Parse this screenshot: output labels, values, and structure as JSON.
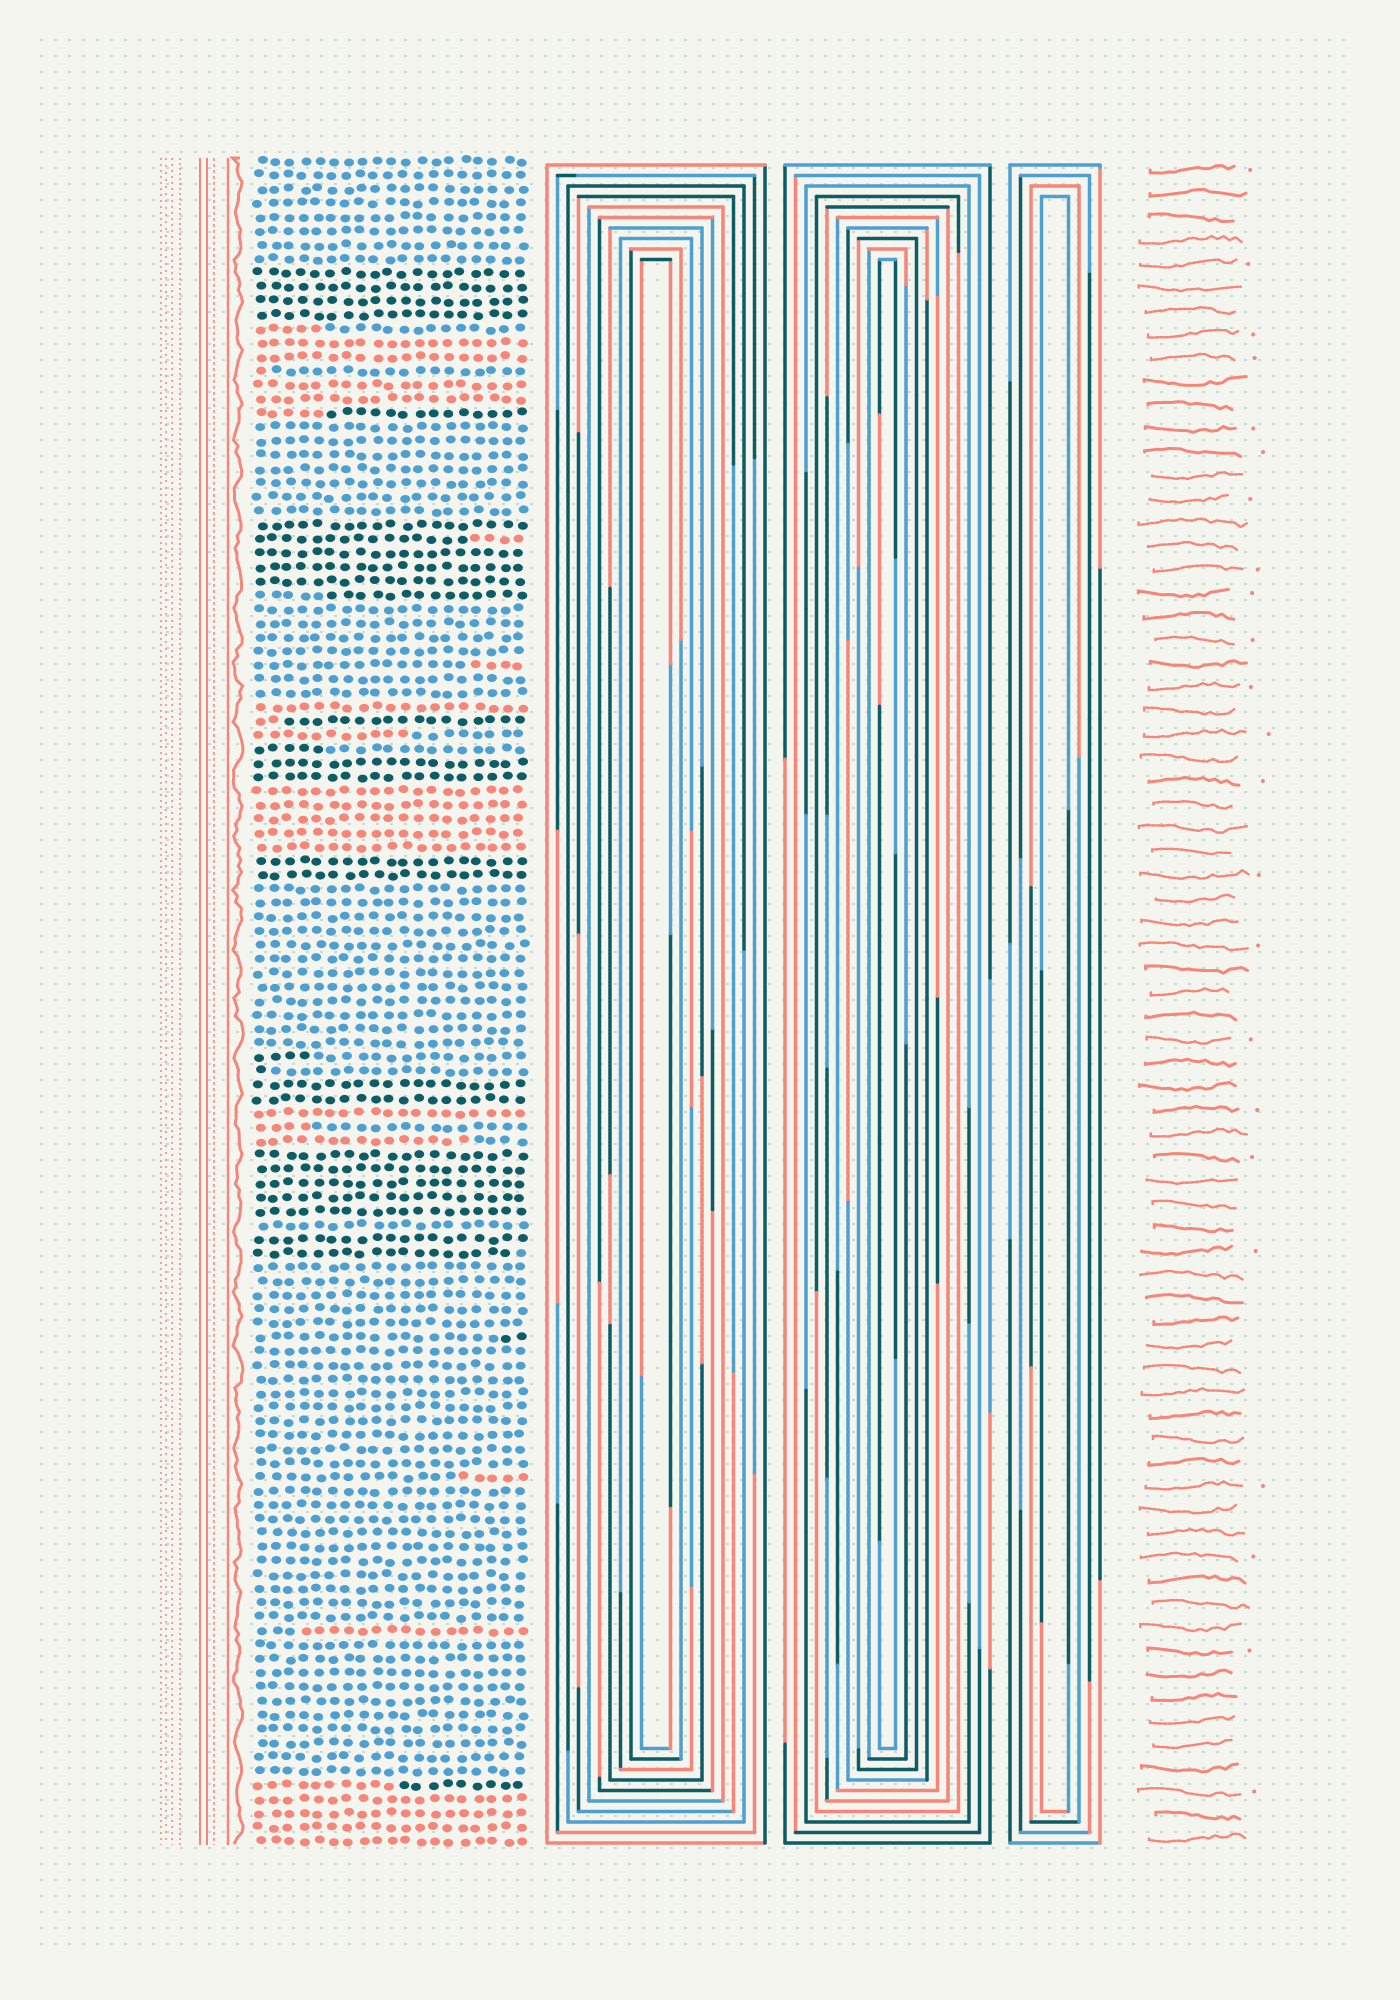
{
  "palette": {
    "background": "#f5f5ef",
    "salmon": "#f4867a",
    "blue": "#4f9fcf",
    "teal": "#0d5c66",
    "grid_dot": "#b9cfc9"
  }
}
